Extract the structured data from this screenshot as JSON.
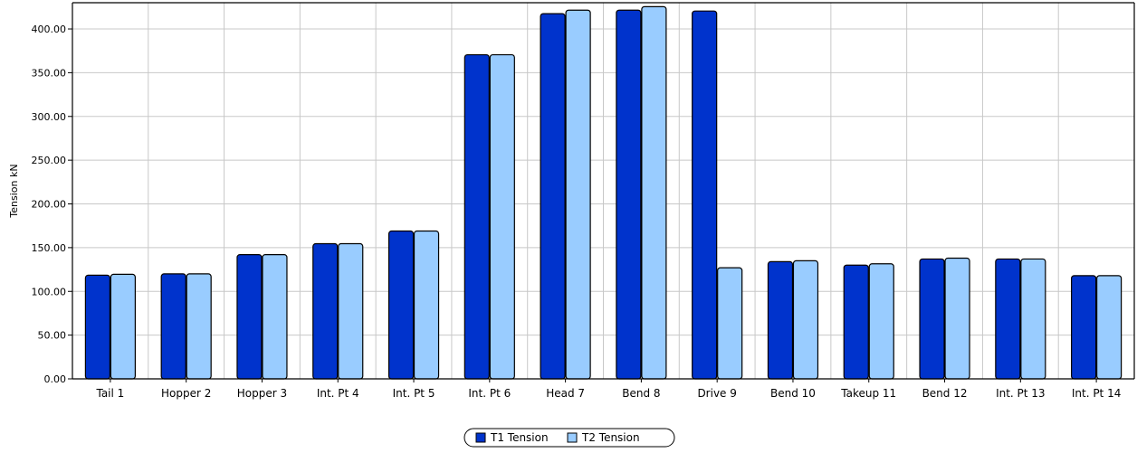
{
  "chart_data": {
    "type": "bar",
    "title": "",
    "xlabel": "",
    "ylabel": "Tension kN",
    "ylim": [
      0,
      430
    ],
    "yticks": [
      0,
      50,
      100,
      150,
      200,
      250,
      300,
      350,
      400
    ],
    "ytick_labels": [
      "0.00",
      "50.00",
      "100.00",
      "150.00",
      "200.00",
      "250.00",
      "300.00",
      "350.00",
      "400.00"
    ],
    "grid": true,
    "legend_position": "bottom-center",
    "categories": [
      "Tail 1",
      "Hopper 2",
      "Hopper 3",
      "Int. Pt 4",
      "Int. Pt 5",
      "Int. Pt 6",
      "Head 7",
      "Bend 8",
      "Drive 9",
      "Bend 10",
      "Takeup 11",
      "Bend 12",
      "Int. Pt 13",
      "Int. Pt 14"
    ],
    "series": [
      {
        "name": "T1 Tension",
        "color": "#0033CC",
        "values": [
          118.5,
          120.0,
          142.0,
          154.5,
          169.0,
          370.5,
          417.5,
          421.5,
          420.5,
          134.0,
          130.0,
          137.0,
          137.0,
          118.0
        ]
      },
      {
        "name": "T2 Tension",
        "color": "#99CCFF",
        "values": [
          119.5,
          120.0,
          142.0,
          154.5,
          169.0,
          370.5,
          421.5,
          425.5,
          127.0,
          135.0,
          131.5,
          138.0,
          137.0,
          118.0
        ]
      }
    ]
  }
}
